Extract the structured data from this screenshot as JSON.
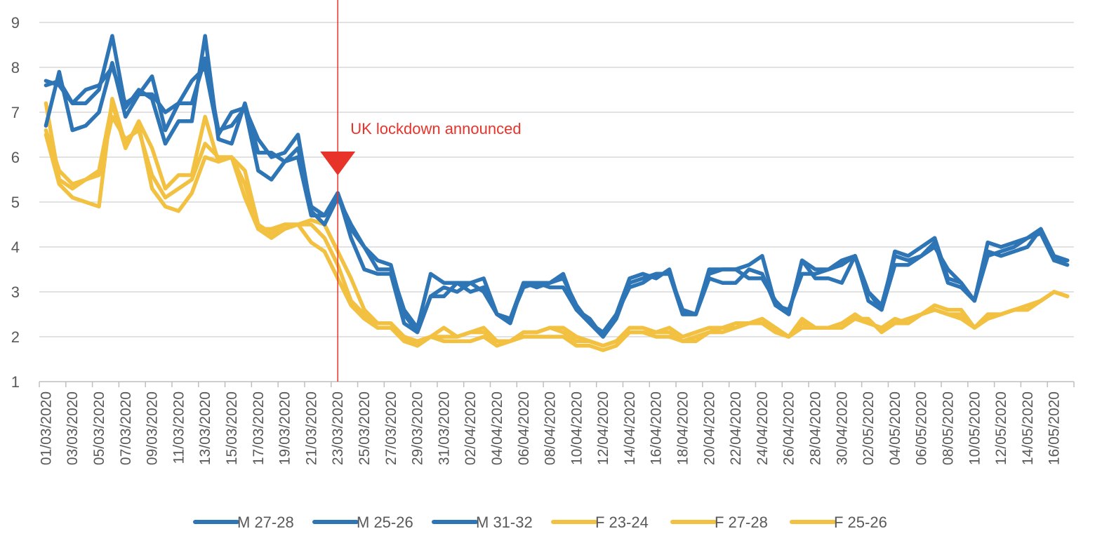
{
  "chart_data": {
    "type": "line",
    "title": "",
    "xlabel": "",
    "ylabel": "",
    "ylim": [
      1,
      9
    ],
    "yticks": [
      "1",
      "2",
      "3",
      "4",
      "5",
      "6",
      "7",
      "8",
      "9"
    ],
    "grid": "horizontal",
    "legend_position": "bottom",
    "x_tick_labels": [
      "01/03/2020",
      "03/03/2020",
      "05/03/2020",
      "07/03/2020",
      "09/03/2020",
      "11/03/2020",
      "13/03/2020",
      "15/03/2020",
      "17/03/2020",
      "19/03/2020",
      "21/03/2020",
      "23/03/2020",
      "25/03/2020",
      "27/03/2020",
      "29/03/2020",
      "31/03/2020",
      "02/04/2020",
      "04/04/2020",
      "06/04/2020",
      "08/04/2020",
      "10/04/2020",
      "12/04/2020",
      "14/04/2020",
      "16/04/2020",
      "18/04/2020",
      "20/04/2020",
      "22/04/2020",
      "24/04/2020",
      "26/04/2020",
      "28/04/2020",
      "30/04/2020",
      "02/05/2020",
      "04/05/2020",
      "06/05/2020",
      "08/05/2020",
      "10/05/2020",
      "12/05/2020",
      "14/05/2020",
      "16/05/2020"
    ],
    "x": [
      "01/03/2020",
      "02/03/2020",
      "03/03/2020",
      "04/03/2020",
      "05/03/2020",
      "06/03/2020",
      "07/03/2020",
      "08/03/2020",
      "09/03/2020",
      "10/03/2020",
      "11/03/2020",
      "12/03/2020",
      "13/03/2020",
      "14/03/2020",
      "15/03/2020",
      "16/03/2020",
      "17/03/2020",
      "18/03/2020",
      "19/03/2020",
      "20/03/2020",
      "21/03/2020",
      "22/03/2020",
      "23/03/2020",
      "24/03/2020",
      "25/03/2020",
      "26/03/2020",
      "27/03/2020",
      "28/03/2020",
      "29/03/2020",
      "30/03/2020",
      "31/03/2020",
      "01/04/2020",
      "02/04/2020",
      "03/04/2020",
      "04/04/2020",
      "05/04/2020",
      "06/04/2020",
      "07/04/2020",
      "08/04/2020",
      "09/04/2020",
      "10/04/2020",
      "11/04/2020",
      "12/04/2020",
      "13/04/2020",
      "14/04/2020",
      "15/04/2020",
      "16/04/2020",
      "17/04/2020",
      "18/04/2020",
      "19/04/2020",
      "20/04/2020",
      "21/04/2020",
      "22/04/2020",
      "23/04/2020",
      "24/04/2020",
      "25/04/2020",
      "26/04/2020",
      "27/04/2020",
      "28/04/2020",
      "29/04/2020",
      "30/04/2020",
      "01/05/2020",
      "02/05/2020",
      "03/05/2020",
      "04/05/2020",
      "05/05/2020",
      "06/05/2020",
      "07/05/2020",
      "08/05/2020",
      "09/05/2020",
      "10/05/2020",
      "11/05/2020",
      "12/05/2020",
      "13/05/2020",
      "14/05/2020",
      "15/05/2020",
      "16/05/2020",
      "17/05/2020"
    ],
    "series": [
      {
        "name": "M 27-28",
        "color": "#2E75B6",
        "values": [
          7.7,
          7.6,
          7.2,
          7.2,
          7.5,
          8.7,
          7.1,
          7.5,
          7.3,
          6.3,
          6.8,
          6.8,
          8.7,
          6.4,
          6.3,
          7.2,
          6.1,
          6.1,
          5.9,
          6.2,
          4.9,
          4.7,
          5.2,
          4.4,
          4.0,
          3.7,
          3.6,
          2.5,
          2.1,
          2.9,
          2.9,
          3.2,
          3.2,
          3.3,
          2.5,
          2.3,
          3.2,
          3.2,
          3.2,
          3.4,
          2.6,
          2.4,
          2.0,
          2.5,
          3.3,
          3.4,
          3.3,
          3.5,
          2.5,
          2.5,
          3.5,
          3.5,
          3.5,
          3.6,
          3.8,
          2.7,
          2.5,
          3.7,
          3.5,
          3.5,
          3.6,
          3.8,
          3.0,
          2.6,
          3.9,
          3.8,
          4.0,
          4.2,
          3.3,
          3.2,
          2.8,
          4.1,
          4.0,
          4.1,
          4.2,
          4.4,
          3.8,
          3.7
        ]
      },
      {
        "name": "M 25-26",
        "color": "#2E75B6",
        "values": [
          6.7,
          7.9,
          6.6,
          6.7,
          7.0,
          8.1,
          6.9,
          7.4,
          7.8,
          6.6,
          7.2,
          7.2,
          8.2,
          6.6,
          6.7,
          7.1,
          5.7,
          5.5,
          5.9,
          6.0,
          4.7,
          4.7,
          5.2,
          4.2,
          3.5,
          3.4,
          3.4,
          2.3,
          2.1,
          2.9,
          3.1,
          3.0,
          3.2,
          3.0,
          2.5,
          2.4,
          3.1,
          3.2,
          3.1,
          3.1,
          2.6,
          2.3,
          2.0,
          2.4,
          3.2,
          3.3,
          3.4,
          3.4,
          2.5,
          2.5,
          3.4,
          3.5,
          3.5,
          3.3,
          3.3,
          2.8,
          2.5,
          3.7,
          3.3,
          3.3,
          3.2,
          3.8,
          2.8,
          2.6,
          3.6,
          3.6,
          3.8,
          4.1,
          3.2,
          3.1,
          2.8,
          3.9,
          3.8,
          3.9,
          4.0,
          4.4,
          3.7,
          3.6
        ]
      },
      {
        "name": "M 31-32",
        "color": "#2E75B6",
        "values": [
          7.6,
          7.7,
          7.2,
          7.5,
          7.6,
          8.0,
          7.2,
          7.4,
          7.4,
          7.0,
          7.2,
          7.7,
          8.0,
          6.5,
          7.0,
          7.1,
          6.4,
          6.0,
          6.1,
          6.5,
          4.8,
          4.5,
          5.1,
          4.5,
          4.0,
          3.5,
          3.5,
          2.6,
          2.2,
          3.4,
          3.2,
          3.2,
          3.0,
          3.1,
          2.5,
          2.4,
          3.2,
          3.1,
          3.2,
          3.3,
          2.7,
          2.3,
          2.1,
          2.5,
          3.1,
          3.2,
          3.4,
          3.4,
          2.6,
          2.5,
          3.3,
          3.2,
          3.2,
          3.5,
          3.4,
          2.7,
          2.6,
          3.4,
          3.4,
          3.5,
          3.7,
          3.8,
          3.0,
          2.7,
          3.8,
          3.7,
          3.8,
          4.0,
          3.5,
          3.2,
          2.8,
          3.8,
          3.9,
          4.0,
          4.2,
          4.3,
          3.7,
          3.7
        ]
      },
      {
        "name": "F 23-24",
        "color": "#F2C141",
        "values": [
          7.2,
          5.5,
          5.3,
          5.5,
          5.7,
          7.2,
          6.2,
          6.8,
          6.2,
          5.3,
          5.6,
          5.6,
          6.9,
          5.9,
          6.0,
          5.1,
          4.4,
          4.4,
          4.5,
          4.5,
          4.6,
          4.5,
          3.9,
          3.3,
          2.6,
          2.3,
          2.3,
          2.0,
          1.8,
          2.0,
          2.2,
          2.0,
          2.1,
          2.2,
          1.9,
          1.9,
          2.1,
          2.1,
          2.2,
          2.2,
          2.0,
          1.9,
          1.8,
          1.9,
          2.2,
          2.2,
          2.1,
          2.2,
          2.0,
          2.1,
          2.2,
          2.2,
          2.3,
          2.3,
          2.4,
          2.2,
          2.0,
          2.4,
          2.2,
          2.2,
          2.3,
          2.5,
          2.3,
          2.2,
          2.4,
          2.3,
          2.5,
          2.7,
          2.6,
          2.6,
          2.2,
          2.5,
          2.5,
          2.6,
          2.6,
          2.8,
          3.0,
          2.9
        ]
      },
      {
        "name": "F 27-28",
        "color": "#F2C141",
        "values": [
          6.5,
          5.4,
          5.1,
          5.0,
          4.9,
          7.3,
          6.3,
          6.7,
          5.3,
          4.9,
          4.8,
          5.2,
          6.0,
          5.9,
          6.0,
          5.4,
          4.4,
          4.2,
          4.4,
          4.5,
          4.1,
          3.9,
          3.3,
          2.7,
          2.4,
          2.2,
          2.2,
          1.9,
          1.8,
          2.0,
          1.9,
          1.9,
          1.9,
          2.0,
          1.8,
          1.9,
          2.0,
          2.0,
          2.0,
          2.0,
          1.8,
          1.8,
          1.7,
          1.8,
          2.1,
          2.1,
          2.0,
          2.0,
          1.9,
          1.9,
          2.1,
          2.2,
          2.2,
          2.3,
          2.3,
          2.1,
          2.0,
          2.2,
          2.2,
          2.2,
          2.3,
          2.4,
          2.4,
          2.1,
          2.3,
          2.3,
          2.5,
          2.6,
          2.5,
          2.5,
          2.2,
          2.4,
          2.5,
          2.6,
          2.6,
          2.8,
          3.0,
          2.9
        ]
      },
      {
        "name": "F 25-26",
        "color": "#F2C141",
        "values": [
          6.6,
          5.7,
          5.4,
          5.5,
          5.6,
          6.9,
          6.4,
          6.6,
          5.6,
          5.1,
          5.3,
          5.5,
          6.3,
          6.0,
          6.0,
          5.7,
          4.5,
          4.3,
          4.5,
          4.5,
          4.5,
          4.2,
          3.6,
          2.8,
          2.5,
          2.3,
          2.3,
          2.0,
          1.9,
          2.0,
          2.0,
          2.0,
          2.1,
          2.1,
          1.9,
          1.9,
          2.1,
          2.1,
          2.2,
          2.1,
          1.9,
          1.9,
          1.8,
          1.9,
          2.1,
          2.1,
          2.1,
          2.1,
          1.9,
          2.0,
          2.1,
          2.1,
          2.2,
          2.3,
          2.3,
          2.1,
          2.0,
          2.3,
          2.2,
          2.2,
          2.2,
          2.4,
          2.3,
          2.2,
          2.3,
          2.4,
          2.5,
          2.6,
          2.5,
          2.4,
          2.2,
          2.4,
          2.5,
          2.6,
          2.7,
          2.8,
          3.0,
          2.9
        ]
      }
    ],
    "annotations": [
      {
        "text": "UK lockdown announced",
        "x": "23/03/2020",
        "color": "#E8332B"
      }
    ]
  }
}
